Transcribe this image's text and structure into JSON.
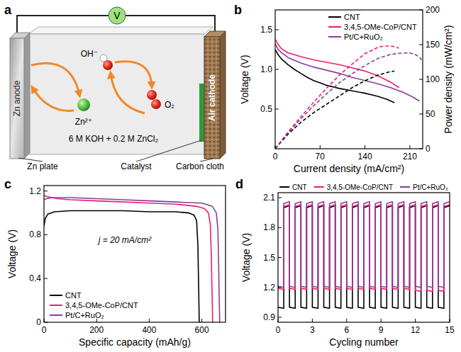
{
  "diagram": {
    "panel": "a",
    "meter": "V",
    "anode": "Zn anode",
    "cathode": "Air cathode",
    "hydroxide": "OH⁻",
    "zinc_ion": "Zn²⁺",
    "oxygen": "O₂",
    "electrolyte": "6 M KOH + 0.2 M ZnCl₂",
    "callouts": [
      "Zn plate",
      "Catalyst",
      "Carbon cloth"
    ]
  },
  "chart_data": [
    {
      "panel": "b",
      "type": "line",
      "xlabel": "Current density (mA/cm²)",
      "ylabel": "Voltage (V)",
      "y2label": "Power density (mW/cm²)",
      "xlim": [
        0,
        230
      ],
      "ylim": [
        0,
        1.75
      ],
      "y2lim": [
        0,
        200
      ],
      "xticks": [
        0,
        70,
        140,
        210
      ],
      "yticks": [
        0.5,
        {
          "value": 1,
          "label": "1.0"
        },
        1.5
      ],
      "y2ticks": [
        0,
        50,
        100,
        150,
        200
      ],
      "legend": "upper right",
      "series": [
        {
          "name": "CNT",
          "color": "#000000",
          "line_style": "solid",
          "x": [
            0,
            5,
            10,
            20,
            30,
            40,
            50,
            60,
            70,
            80,
            100,
            120,
            140,
            160,
            175,
            186
          ],
          "values": [
            1.25,
            1.18,
            1.13,
            1.06,
            1.0,
            0.95,
            0.9,
            0.86,
            0.83,
            0.8,
            0.76,
            0.73,
            0.7,
            0.66,
            0.62,
            0.58
          ]
        },
        {
          "name": "3,4,5-OMe-CoP/CNT",
          "color": "#ee1d6f",
          "line_style": "solid",
          "x": [
            0,
            5,
            10,
            20,
            40,
            60,
            80,
            100,
            120,
            140,
            160,
            170,
            180,
            193
          ],
          "values": [
            1.38,
            1.31,
            1.26,
            1.21,
            1.16,
            1.12,
            1.09,
            1.06,
            1.02,
            0.98,
            0.92,
            0.88,
            0.84,
            0.77
          ]
        },
        {
          "name": "Pt/C+RuO₂",
          "color": "#8c3b9c",
          "line_style": "solid",
          "x": [
            0,
            5,
            10,
            20,
            40,
            60,
            80,
            100,
            120,
            140,
            160,
            180,
            200,
            215,
            225
          ],
          "values": [
            1.32,
            1.25,
            1.21,
            1.15,
            1.08,
            1.03,
            0.99,
            0.95,
            0.9,
            0.86,
            0.82,
            0.77,
            0.71,
            0.65,
            0.6
          ]
        },
        {
          "name": "CNT",
          "color": "#000000",
          "line_style": "dashed",
          "axis": "y2",
          "x": [
            0,
            20,
            40,
            60,
            80,
            100,
            120,
            140,
            160,
            175,
            186
          ],
          "values": [
            0,
            21,
            38,
            52,
            64,
            76,
            88,
            98,
            106,
            110,
            112
          ]
        },
        {
          "name": "3,4,5-OMe-CoP/CNT",
          "color": "#ee1d6f",
          "line_style": "dashed",
          "axis": "y2",
          "x": [
            0,
            20,
            40,
            60,
            80,
            100,
            120,
            140,
            160,
            170,
            180,
            186,
            193
          ],
          "values": [
            0,
            24,
            46,
            67,
            87,
            106,
            122,
            137,
            146,
            148,
            148,
            147,
            145
          ]
        },
        {
          "name": "Pt/C+RuO₂",
          "color": "#8c3b9c",
          "line_style": "dashed",
          "axis": "y2",
          "x": [
            0,
            20,
            40,
            60,
            80,
            100,
            120,
            140,
            160,
            180,
            200,
            210,
            218,
            225,
            228
          ],
          "values": [
            0,
            23,
            43,
            62,
            79,
            95,
            108,
            120,
            130,
            136,
            138,
            138,
            136,
            132,
            128
          ]
        }
      ]
    },
    {
      "panel": "c",
      "type": "line",
      "xlabel": "Specific capacity (mAh/g)",
      "ylabel": "Voltage (V)",
      "annotations": [
        "j = 20 mA/cm²"
      ],
      "xlim": [
        0,
        690
      ],
      "ylim": [
        0,
        1.25
      ],
      "xticks": [
        0,
        200,
        400,
        600
      ],
      "yticks": [
        0,
        0.4,
        0.8,
        1.2
      ],
      "legend": "lower left",
      "series": [
        {
          "name": "CNT",
          "color": "#000000",
          "line_style": "solid",
          "x": [
            0,
            5,
            15,
            40,
            100,
            200,
            300,
            400,
            500,
            550,
            570,
            580,
            585,
            588,
            590
          ],
          "values": [
            0.88,
            0.95,
            0.99,
            1.01,
            1.02,
            1.02,
            1.02,
            1.01,
            1.01,
            1.0,
            0.98,
            0.93,
            0.7,
            0.3,
            0.0
          ]
        },
        {
          "name": "3,4,5-OMe-CoP/CNT",
          "color": "#ee1d6f",
          "line_style": "solid",
          "x": [
            0,
            10,
            50,
            100,
            200,
            300,
            400,
            500,
            580,
            610,
            625,
            632,
            636,
            639,
            641
          ],
          "values": [
            1.16,
            1.15,
            1.13,
            1.12,
            1.11,
            1.1,
            1.09,
            1.08,
            1.06,
            1.04,
            1.0,
            0.9,
            0.6,
            0.25,
            0.0
          ]
        },
        {
          "name": "Pt/C+RuO₂",
          "color": "#8c3b9c",
          "line_style": "solid",
          "x": [
            0,
            10,
            30,
            100,
            200,
            300,
            400,
            500,
            600,
            640,
            655,
            661,
            664,
            666,
            668
          ],
          "values": [
            1.12,
            1.13,
            1.14,
            1.14,
            1.13,
            1.12,
            1.11,
            1.1,
            1.09,
            1.06,
            1.0,
            0.85,
            0.5,
            0.2,
            0.0
          ]
        }
      ]
    },
    {
      "panel": "d",
      "type": "line",
      "xlabel": "Cycling number",
      "ylabel": "Voltage (V)",
      "x": [
        0,
        0.5,
        0.5,
        1,
        1,
        1.5,
        1.5,
        2,
        2,
        2.5,
        2.5,
        3,
        3,
        3.5,
        3.5,
        4,
        4,
        4.5,
        4.5,
        5,
        5,
        5.5,
        5.5,
        6,
        6,
        6.5,
        6.5,
        7,
        7,
        7.5,
        7.5,
        8,
        8,
        8.5,
        8.5,
        9,
        9,
        9.5,
        9.5,
        10,
        10,
        10.5,
        10.5,
        11,
        11,
        11.5,
        11.5,
        12,
        12,
        12.5,
        12.5,
        13,
        13,
        13.5,
        13.5,
        14,
        14,
        14.5,
        14.5,
        15
      ],
      "xlim": [
        0,
        15
      ],
      "ylim": [
        0.85,
        2.15
      ],
      "xticks": [
        0,
        3,
        6,
        9,
        12,
        15
      ],
      "yticks": [
        0.9,
        1.2,
        1.5,
        1.8,
        2.1
      ],
      "legend": "top",
      "series": [
        {
          "name": "CNT",
          "color": "#000000",
          "line_style": "solid",
          "values": [
            1.0,
            0.99,
            2.0,
            2.02,
            1.0,
            0.99,
            2.0,
            2.02,
            1.0,
            0.99,
            2.0,
            2.02,
            1.0,
            0.99,
            2.0,
            2.02,
            1.0,
            0.99,
            2.0,
            2.02,
            1.0,
            0.99,
            2.0,
            2.02,
            1.0,
            0.99,
            2.0,
            2.02,
            1.0,
            0.99,
            2.0,
            2.02,
            1.0,
            0.99,
            2.0,
            2.02,
            1.0,
            0.99,
            2.0,
            2.02,
            1.0,
            0.99,
            2.0,
            2.02,
            1.0,
            0.99,
            2.0,
            2.02,
            1.0,
            0.99,
            2.0,
            2.02,
            1.0,
            0.99,
            2.0,
            2.02,
            1.0,
            0.99,
            2.0,
            2.02
          ]
        },
        {
          "name": "3,4,5-OMe-CoP/CNT",
          "color": "#ee1d6f",
          "line_style": "solid",
          "values": [
            1.19,
            1.18,
            2.01,
            2.03,
            1.19,
            1.18,
            2.01,
            2.03,
            1.19,
            1.18,
            2.01,
            2.03,
            1.19,
            1.18,
            2.01,
            2.03,
            1.19,
            1.18,
            2.01,
            2.03,
            1.19,
            1.18,
            2.01,
            2.03,
            1.19,
            1.18,
            2.01,
            2.03,
            1.19,
            1.18,
            2.01,
            2.03,
            1.19,
            1.18,
            2.01,
            2.03,
            1.19,
            1.18,
            2.01,
            2.03,
            1.19,
            1.18,
            2.01,
            2.03,
            1.19,
            1.18,
            2.01,
            2.03,
            1.17,
            1.16,
            2.01,
            2.03,
            1.17,
            1.16,
            2.01,
            2.03,
            1.17,
            1.16,
            2.01,
            2.03
          ]
        },
        {
          "name": "Pt/C+RuO₂",
          "color": "#8c3b9c",
          "line_style": "solid",
          "values": [
            1.21,
            1.2,
            2.04,
            2.06,
            1.21,
            1.2,
            2.04,
            2.06,
            1.21,
            1.2,
            2.04,
            2.06,
            1.21,
            1.2,
            2.04,
            2.06,
            1.21,
            1.2,
            2.04,
            2.06,
            1.21,
            1.2,
            2.04,
            2.06,
            1.21,
            1.2,
            2.04,
            2.06,
            1.21,
            1.2,
            2.04,
            2.06,
            1.21,
            1.2,
            2.04,
            2.06,
            1.21,
            1.2,
            2.04,
            2.06,
            1.21,
            1.2,
            2.04,
            2.06,
            1.21,
            1.2,
            2.04,
            2.06,
            1.21,
            1.2,
            2.04,
            2.06,
            1.21,
            1.2,
            2.04,
            2.06,
            1.21,
            1.2,
            2.04,
            2.06
          ]
        }
      ]
    }
  ]
}
